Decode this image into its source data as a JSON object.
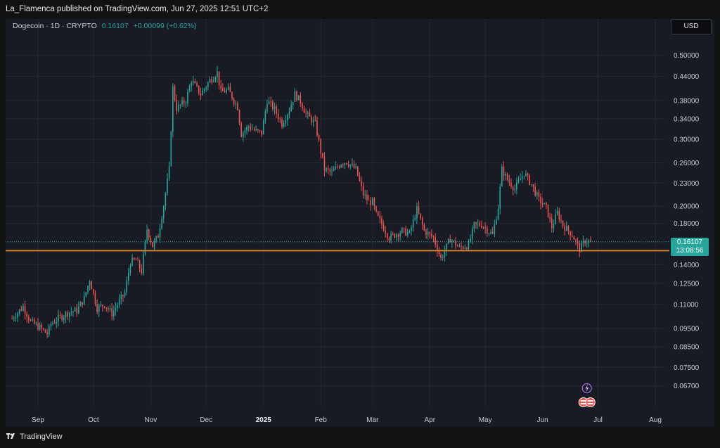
{
  "header": {
    "publish_text": "La_Flamenca published on TradingView.com, Jun 27, 2025 12:51 UTC+2"
  },
  "legend": {
    "symbol": "Dogecoin · 1D · CRYPTO",
    "last": "0.16107",
    "change": "+0.00099 (+0.62%)"
  },
  "currency_button": "USD",
  "price_tag": {
    "price": "0.16107",
    "countdown": "13:08:56"
  },
  "footer": {
    "brand": "TradingView"
  },
  "colors": {
    "up": "#26a69a",
    "down": "#ef5350",
    "support_line": "#d3812f",
    "background": "#181b23",
    "grid": "#242833"
  },
  "icons": [
    "tv-logo-icon",
    "lightning-event-icon",
    "us-flag-event-icon"
  ],
  "chart_data": {
    "type": "candlestick",
    "symbol": "Dogecoin",
    "interval": "1D",
    "y_scale": "log",
    "ylim": [
      0.0633,
      0.519
    ],
    "grid": true,
    "y_ticks": [
      "0.50000",
      "0.44000",
      "0.38000",
      "0.34000",
      "0.30000",
      "0.26000",
      "0.23000",
      "0.20000",
      "0.18000",
      "0.16000",
      "0.14000",
      "0.12500",
      "0.11000",
      "0.09500",
      "0.08500",
      "0.07500",
      "0.06700"
    ],
    "x_ticks": [
      {
        "label": "Sep",
        "x": "2024-09-01"
      },
      {
        "label": "Oct",
        "x": "2024-10-01"
      },
      {
        "label": "Nov",
        "x": "2024-11-01"
      },
      {
        "label": "Dec",
        "x": "2024-12-01"
      },
      {
        "label": "2025",
        "x": "2025-01-01",
        "bold": true
      },
      {
        "label": "Feb",
        "x": "2025-02-01"
      },
      {
        "label": "Mar",
        "x": "2025-03-01"
      },
      {
        "label": "Apr",
        "x": "2025-04-01"
      },
      {
        "label": "May",
        "x": "2025-05-01"
      },
      {
        "label": "Jun",
        "x": "2025-06-01"
      },
      {
        "label": "Jul",
        "x": "2025-07-01"
      },
      {
        "label": "Aug",
        "x": "2025-08-01"
      }
    ],
    "last_price": 0.16107,
    "support_level": 0.1525,
    "price_series": [
      [
        "2024-08-18",
        0.101
      ],
      [
        "2024-08-24",
        0.1085
      ],
      [
        "2024-08-28",
        0.099
      ],
      [
        "2024-09-02",
        0.0955
      ],
      [
        "2024-09-06",
        0.092
      ],
      [
        "2024-09-08",
        0.0975
      ],
      [
        "2024-09-12",
        0.101
      ],
      [
        "2024-09-18",
        0.105
      ],
      [
        "2024-09-22",
        0.106
      ],
      [
        "2024-09-26",
        0.114
      ],
      [
        "2024-09-29",
        0.128
      ],
      [
        "2024-10-03",
        0.1075
      ],
      [
        "2024-10-07",
        0.11
      ],
      [
        "2024-10-11",
        0.104
      ],
      [
        "2024-10-15",
        0.112
      ],
      [
        "2024-10-18",
        0.118
      ],
      [
        "2024-10-21",
        0.142
      ],
      [
        "2024-10-24",
        0.144
      ],
      [
        "2024-10-27",
        0.1345
      ],
      [
        "2024-10-30",
        0.174
      ],
      [
        "2024-11-02",
        0.157
      ],
      [
        "2024-11-05",
        0.167
      ],
      [
        "2024-11-08",
        0.201
      ],
      [
        "2024-11-11",
        0.25
      ],
      [
        "2024-11-13",
        0.41
      ],
      [
        "2024-11-15",
        0.362
      ],
      [
        "2024-11-20",
        0.38
      ],
      [
        "2024-11-23",
        0.43
      ],
      [
        "2024-11-28",
        0.395
      ],
      [
        "2024-12-03",
        0.43
      ],
      [
        "2024-12-07",
        0.45
      ],
      [
        "2024-12-09",
        0.4
      ],
      [
        "2024-12-13",
        0.405
      ],
      [
        "2024-12-18",
        0.365
      ],
      [
        "2024-12-20",
        0.31
      ],
      [
        "2024-12-24",
        0.325
      ],
      [
        "2024-12-28",
        0.315
      ],
      [
        "2024-12-31",
        0.312
      ],
      [
        "2025-01-03",
        0.38
      ],
      [
        "2025-01-07",
        0.36
      ],
      [
        "2025-01-11",
        0.33
      ],
      [
        "2025-01-15",
        0.36
      ],
      [
        "2025-01-18",
        0.395
      ],
      [
        "2025-01-21",
        0.378
      ],
      [
        "2025-01-24",
        0.35
      ],
      [
        "2025-01-29",
        0.33
      ],
      [
        "2025-02-03",
        0.25
      ],
      [
        "2025-02-07",
        0.245
      ],
      [
        "2025-02-12",
        0.26
      ],
      [
        "2025-02-15",
        0.262
      ],
      [
        "2025-02-20",
        0.25
      ],
      [
        "2025-02-24",
        0.215
      ],
      [
        "2025-02-27",
        0.205
      ],
      [
        "2025-03-01",
        0.205
      ],
      [
        "2025-03-03",
        0.19
      ],
      [
        "2025-03-10",
        0.165
      ],
      [
        "2025-03-13",
        0.168
      ],
      [
        "2025-03-17",
        0.172
      ],
      [
        "2025-03-21",
        0.169
      ],
      [
        "2025-03-25",
        0.196
      ],
      [
        "2025-03-29",
        0.172
      ],
      [
        "2025-04-03",
        0.165
      ],
      [
        "2025-04-07",
        0.145
      ],
      [
        "2025-04-12",
        0.164
      ],
      [
        "2025-04-17",
        0.155
      ],
      [
        "2025-04-22",
        0.158
      ],
      [
        "2025-04-25",
        0.178
      ],
      [
        "2025-04-29",
        0.179
      ],
      [
        "2025-05-02",
        0.173
      ],
      [
        "2025-05-05",
        0.168
      ],
      [
        "2025-05-08",
        0.199
      ],
      [
        "2025-05-10",
        0.25
      ],
      [
        "2025-05-13",
        0.235
      ],
      [
        "2025-05-17",
        0.222
      ],
      [
        "2025-05-22",
        0.245
      ],
      [
        "2025-05-26",
        0.228
      ],
      [
        "2025-05-30",
        0.208
      ],
      [
        "2025-06-03",
        0.198
      ],
      [
        "2025-06-06",
        0.176
      ],
      [
        "2025-06-09",
        0.192
      ],
      [
        "2025-06-12",
        0.178
      ],
      [
        "2025-06-17",
        0.168
      ],
      [
        "2025-06-21",
        0.154
      ],
      [
        "2025-06-24",
        0.162
      ],
      [
        "2025-06-27",
        0.16107
      ]
    ]
  }
}
